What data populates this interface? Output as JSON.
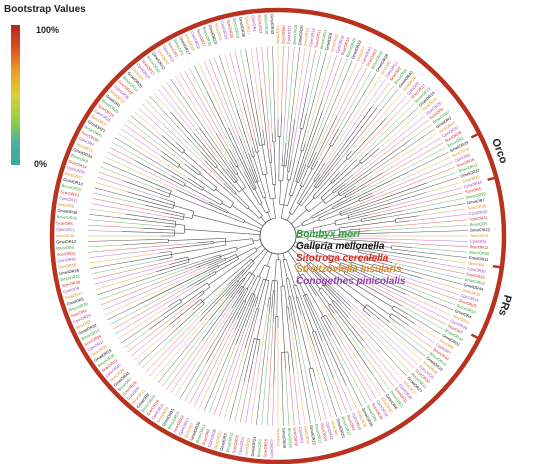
{
  "legend": {
    "title": "Bootstrap Values",
    "max_label": "100%",
    "min_label": "0%",
    "gradient": [
      "#b3241c",
      "#d9541e",
      "#e8a12a",
      "#d9cf38",
      "#9ccf3c",
      "#4fb39a",
      "#3aa7a3"
    ]
  },
  "species": [
    {
      "name": "Bombyx mori",
      "color": "#2e9e3a"
    },
    {
      "name": "Galleria mellonella",
      "color": "#111111"
    },
    {
      "name": "Sitotroga cerealella",
      "color": "#d8281f"
    },
    {
      "name": "Streltzoviella insularis",
      "color": "#e08a1c"
    },
    {
      "name": "Conogethes pinicolalis",
      "color": "#9b3fb8"
    }
  ],
  "clades": [
    {
      "name": "Orco"
    },
    {
      "name": "PRs"
    }
  ],
  "ring_color": "#b8321f",
  "leaves": [
    {
      "label": "SinsOR31",
      "sp": 3
    },
    {
      "label": "ScerOR46",
      "sp": 2
    },
    {
      "label": "CpinOR23",
      "sp": 4
    },
    {
      "label": "BmorOR16",
      "sp": 0
    },
    {
      "label": "GmelOR25",
      "sp": 1
    },
    {
      "label": "SinsOR12",
      "sp": 3
    },
    {
      "label": "CpinOR33",
      "sp": 4
    },
    {
      "label": "ScerOR31",
      "sp": 2
    },
    {
      "label": "BmorOR31",
      "sp": 0
    },
    {
      "label": "GmelOR9",
      "sp": 1
    },
    {
      "label": "SinsOR40",
      "sp": 3
    },
    {
      "label": "CpinOR16",
      "sp": 4
    },
    {
      "label": "ScerOR15",
      "sp": 2
    },
    {
      "label": "BmorOR26",
      "sp": 0
    },
    {
      "label": "GmelOR33",
      "sp": 1
    },
    {
      "label": "SinsOR7",
      "sp": 3
    },
    {
      "label": "CpinOR41",
      "sp": 4
    },
    {
      "label": "ScerOR22",
      "sp": 2
    },
    {
      "label": "BmorOR44",
      "sp": 0
    },
    {
      "label": "GmelOR18",
      "sp": 1
    },
    {
      "label": "SinsOR2",
      "sp": 3
    },
    {
      "label": "CpinOR12",
      "sp": 4
    },
    {
      "label": "ScerOR2",
      "sp": 2
    },
    {
      "label": "BmorOR8",
      "sp": 0
    },
    {
      "label": "GmelOR40",
      "sp": 1
    },
    {
      "label": "SinsOR28",
      "sp": 3
    },
    {
      "label": "CpinOR5",
      "sp": 4
    },
    {
      "label": "ScerOR37",
      "sp": 2
    },
    {
      "label": "BmorOR19",
      "sp": 0
    },
    {
      "label": "GmelOR14",
      "sp": 1
    },
    {
      "label": "SinsOR19",
      "sp": 3
    },
    {
      "label": "CpinOR28",
      "sp": 4
    },
    {
      "label": "ScerOR9",
      "sp": 2
    },
    {
      "label": "BmorOR37",
      "sp": 0
    },
    {
      "label": "GmelOR2",
      "sp": 1
    },
    {
      "label": "SinsOR44",
      "sp": 3
    },
    {
      "label": "CpinOR37",
      "sp": 4
    },
    {
      "label": "ScerOR28",
      "sp": 2
    },
    {
      "label": "BmorOR2",
      "sp": 0
    },
    {
      "label": "GmelOR29",
      "sp": 1
    },
    {
      "label": "SinsOR10",
      "sp": 3
    },
    {
      "label": "CpinOR9",
      "sp": 4
    },
    {
      "label": "ScerOR18",
      "sp": 2
    },
    {
      "label": "BmorOR12",
      "sp": 0
    },
    {
      "label": "GmelOR37",
      "sp": 1
    },
    {
      "label": "SinsOR25",
      "sp": 3
    },
    {
      "label": "CpinOR44",
      "sp": 4
    },
    {
      "label": "ScerOR5",
      "sp": 2
    },
    {
      "label": "BmorOR29",
      "sp": 0
    },
    {
      "label": "GmelOR7",
      "sp": 1
    },
    {
      "label": "SinsOR36",
      "sp": 3
    },
    {
      "label": "CpinOR20",
      "sp": 4
    },
    {
      "label": "ScerOR41",
      "sp": 2
    },
    {
      "label": "BmorOR5",
      "sp": 0
    },
    {
      "label": "GmelOR22",
      "sp": 1
    },
    {
      "label": "SinsOR15",
      "sp": 3
    },
    {
      "label": "CpinOR2",
      "sp": 4
    },
    {
      "label": "ScerOR12",
      "sp": 2
    },
    {
      "label": "BmorOR40",
      "sp": 0
    },
    {
      "label": "GmelOR11",
      "sp": 1
    },
    {
      "label": "SinsOR4",
      "sp": 3
    },
    {
      "label": "CpinOR30",
      "sp": 4
    },
    {
      "label": "ScerOR33",
      "sp": 2
    },
    {
      "label": "BmorOR23",
      "sp": 0
    },
    {
      "label": "GmelOR44",
      "sp": 1
    },
    {
      "label": "SinsOR33",
      "sp": 3
    },
    {
      "label": "CpinOR14",
      "sp": 4
    },
    {
      "label": "ScerOR25",
      "sp": 2
    },
    {
      "label": "BmorOR10",
      "sp": 0
    },
    {
      "label": "GmelOR4",
      "sp": 1
    },
    {
      "label": "SinsOR22",
      "sp": 3
    },
    {
      "label": "CpinOR39",
      "sp": 4
    },
    {
      "label": "ScerOR7",
      "sp": 2
    },
    {
      "label": "BmorOR34",
      "sp": 0
    },
    {
      "label": "GmelOR31",
      "sp": 1
    },
    {
      "label": "SinsOR9",
      "sp": 3
    },
    {
      "label": "CpinOR7",
      "sp": 4
    },
    {
      "label": "ScerOR44",
      "sp": 2
    },
    {
      "label": "BmorOR14",
      "sp": 0
    },
    {
      "label": "GmelOR16",
      "sp": 1
    },
    {
      "label": "SinsOR38",
      "sp": 3
    },
    {
      "label": "CpinOR25",
      "sp": 4
    },
    {
      "label": "ScerOR20",
      "sp": 2
    },
    {
      "label": "BmorOR42",
      "sp": 0
    },
    {
      "label": "GmelOR27",
      "sp": 1
    },
    {
      "label": "SinsOR17",
      "sp": 3
    },
    {
      "label": "CpinOR35",
      "sp": 4
    },
    {
      "label": "ScerOR11",
      "sp": 2
    },
    {
      "label": "BmorOR21",
      "sp": 0
    },
    {
      "label": "GmelOR6",
      "sp": 1
    },
    {
      "label": "SinsOR42",
      "sp": 3
    },
    {
      "label": "CpinOR18",
      "sp": 4
    },
    {
      "label": "ScerOR35",
      "sp": 2
    },
    {
      "label": "BmorOR6",
      "sp": 0
    },
    {
      "label": "GmelOR35",
      "sp": 1
    },
    {
      "label": "SinsOR26",
      "sp": 3
    },
    {
      "label": "CpinOR10",
      "sp": 4
    },
    {
      "label": "ScerOR3",
      "sp": 2
    },
    {
      "label": "BmorOR27",
      "sp": 0
    },
    {
      "label": "GmelOR20",
      "sp": 1
    },
    {
      "label": "SinsOR6",
      "sp": 3
    },
    {
      "label": "CpinOR42",
      "sp": 4
    },
    {
      "label": "ScerOR24",
      "sp": 2
    },
    {
      "label": "BmorOR17",
      "sp": 0
    },
    {
      "label": "GmelOR12",
      "sp": 1
    },
    {
      "label": "SinsOR34",
      "sp": 3
    },
    {
      "label": "CpinOR3",
      "sp": 4
    },
    {
      "label": "ScerOR39",
      "sp": 2
    },
    {
      "label": "BmorOR38",
      "sp": 0
    },
    {
      "label": "GmelOR39",
      "sp": 1
    },
    {
      "label": "SinsOR13",
      "sp": 3
    },
    {
      "label": "CpinOR27",
      "sp": 4
    },
    {
      "label": "ScerOR16",
      "sp": 2
    },
    {
      "label": "BmorOR3",
      "sp": 0
    },
    {
      "label": "GmelOR24",
      "sp": 1
    },
    {
      "label": "SinsOR29",
      "sp": 3
    },
    {
      "label": "CpinOR21",
      "sp": 4
    },
    {
      "label": "ScerOR29",
      "sp": 2
    },
    {
      "label": "BmorOR33",
      "sp": 0
    },
    {
      "label": "GmelOR3",
      "sp": 1
    },
    {
      "label": "SinsOR20",
      "sp": 3
    },
    {
      "label": "CpinOR36",
      "sp": 4
    },
    {
      "label": "ScerOR8",
      "sp": 2
    },
    {
      "label": "BmorOR11",
      "sp": 0
    },
    {
      "label": "GmelOR30",
      "sp": 1
    },
    {
      "label": "SinsOR3",
      "sp": 3
    },
    {
      "label": "CpinOR13",
      "sp": 4
    },
    {
      "label": "ScerOR42",
      "sp": 2
    },
    {
      "label": "BmorOR24",
      "sp": 0
    },
    {
      "label": "GmelOR15",
      "sp": 1
    },
    {
      "label": "SinsOR39",
      "sp": 3
    },
    {
      "label": "CpinOR31",
      "sp": 4
    },
    {
      "label": "ScerOR19",
      "sp": 2
    },
    {
      "label": "BmorOR43",
      "sp": 0
    },
    {
      "label": "GmelOR8",
      "sp": 1
    },
    {
      "label": "SinsOR11",
      "sp": 3
    },
    {
      "label": "CpinOR6",
      "sp": 4
    },
    {
      "label": "ScerOR26",
      "sp": 2
    },
    {
      "label": "BmorOR7",
      "sp": 0
    },
    {
      "label": "GmelOR41",
      "sp": 1
    },
    {
      "label": "SinsOR24",
      "sp": 3
    },
    {
      "label": "CpinOR40",
      "sp": 4
    },
    {
      "label": "ScerOR13",
      "sp": 2
    },
    {
      "label": "BmorOR30",
      "sp": 0
    },
    {
      "label": "GmelOR19",
      "sp": 1
    },
    {
      "label": "SinsOR35",
      "sp": 3
    },
    {
      "label": "CpinOR17",
      "sp": 4
    },
    {
      "label": "ScerOR34",
      "sp": 2
    },
    {
      "label": "BmorOR15",
      "sp": 0
    },
    {
      "label": "GmelOR32",
      "sp": 1
    },
    {
      "label": "SinsOR8",
      "sp": 3
    },
    {
      "label": "CpinOR29",
      "sp": 4
    },
    {
      "label": "ScerOR4",
      "sp": 2
    },
    {
      "label": "BmorOR39",
      "sp": 0
    },
    {
      "label": "GmelOR5",
      "sp": 1
    },
    {
      "label": "SinsOR41",
      "sp": 3
    },
    {
      "label": "CpinOR8",
      "sp": 4
    },
    {
      "label": "ScerOR38",
      "sp": 2
    },
    {
      "label": "BmorOR22",
      "sp": 0
    },
    {
      "label": "GmelOR26",
      "sp": 1
    },
    {
      "label": "SinsOR16",
      "sp": 3
    },
    {
      "label": "CpinOR43",
      "sp": 4
    },
    {
      "label": "ScerOR21",
      "sp": 2
    },
    {
      "label": "BmorOR4",
      "sp": 0
    },
    {
      "label": "GmelOR13",
      "sp": 1
    },
    {
      "label": "SinsOR30",
      "sp": 3
    },
    {
      "label": "CpinOR22",
      "sp": 4
    },
    {
      "label": "ScerOR6",
      "sp": 2
    },
    {
      "label": "BmorOR35",
      "sp": 0
    },
    {
      "label": "GmelOR38",
      "sp": 1
    },
    {
      "label": "SinsOR5",
      "sp": 3
    },
    {
      "label": "CpinOR11",
      "sp": 4
    },
    {
      "label": "ScerOR43",
      "sp": 2
    },
    {
      "label": "BmorOR20",
      "sp": 0
    },
    {
      "label": "GmelOR10",
      "sp": 1
    },
    {
      "label": "SinsOR27",
      "sp": 3
    },
    {
      "label": "CpinOR34",
      "sp": 4
    },
    {
      "label": "ScerOR14",
      "sp": 2
    },
    {
      "label": "BmorOR9",
      "sp": 0
    },
    {
      "label": "GmelOR34",
      "sp": 1
    },
    {
      "label": "SinsOR14",
      "sp": 3
    },
    {
      "label": "CpinOR4",
      "sp": 4
    },
    {
      "label": "ScerOR30",
      "sp": 2
    },
    {
      "label": "BmorOR41",
      "sp": 0
    },
    {
      "label": "GmelOR21",
      "sp": 1
    },
    {
      "label": "SinsOR37",
      "sp": 3
    },
    {
      "label": "CpinOR26",
      "sp": 4
    },
    {
      "label": "ScerOR10",
      "sp": 2
    },
    {
      "label": "BmorOR25",
      "sp": 0
    },
    {
      "label": "GmelOR1",
      "sp": 1
    },
    {
      "label": "SinsOR23",
      "sp": 3
    },
    {
      "label": "CpinOR38",
      "sp": 4
    },
    {
      "label": "ScerOR40",
      "sp": 2
    },
    {
      "label": "BmorOR13",
      "sp": 0
    },
    {
      "label": "GmelOR28",
      "sp": 1
    },
    {
      "label": "SinsOR1",
      "sp": 3
    },
    {
      "label": "CpinOR15",
      "sp": 4
    },
    {
      "label": "ScerOR17",
      "sp": 2
    },
    {
      "label": "BmorOR32",
      "sp": 0
    },
    {
      "label": "GmelOR42",
      "sp": 1
    },
    {
      "label": "SinsOR32",
      "sp": 3
    },
    {
      "label": "CpinOR19",
      "sp": 4
    },
    {
      "label": "ScerOR1",
      "sp": 2
    },
    {
      "label": "BmorOR1",
      "sp": 0
    },
    {
      "label": "GmelOR17",
      "sp": 1
    },
    {
      "label": "SinsOR18",
      "sp": 3
    },
    {
      "label": "CpinOR32",
      "sp": 4
    },
    {
      "label": "ScerOR27",
      "sp": 2
    },
    {
      "label": "BmorOR36",
      "sp": 0
    },
    {
      "label": "GmelOR23",
      "sp": 1
    },
    {
      "label": "SinsOR43",
      "sp": 3
    },
    {
      "label": "CpinOR24",
      "sp": 4
    },
    {
      "label": "ScerOR36",
      "sp": 2
    },
    {
      "label": "BmorOR18",
      "sp": 0
    },
    {
      "label": "GmelOR36",
      "sp": 1
    },
    {
      "label": "SinsOR21",
      "sp": 3
    },
    {
      "label": "CpinOR1",
      "sp": 4
    },
    {
      "label": "ScerOR23",
      "sp": 2
    },
    {
      "label": "BmorOR28",
      "sp": 0
    },
    {
      "label": "GmelOR43",
      "sp": 1
    }
  ]
}
